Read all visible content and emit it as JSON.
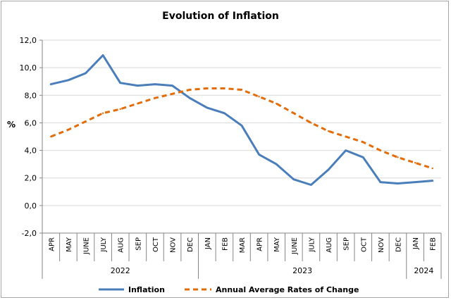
{
  "chart_data": {
    "type": "line",
    "title": "Evolution of Inflation",
    "ylabel": "%",
    "ylim": [
      -2,
      12
    ],
    "yticks": [
      -2,
      0,
      2,
      4,
      6,
      8,
      10,
      12
    ],
    "ytick_labels": [
      "-2,0",
      "0,0",
      "2,0",
      "4,0",
      "6,0",
      "8,0",
      "10,0",
      "12,0"
    ],
    "categories": [
      "APR",
      "MAY",
      "JUNE",
      "JULY",
      "AUG",
      "SEP",
      "OCT",
      "NOV",
      "DEC",
      "JAN",
      "FEB",
      "MAR",
      "APR",
      "MAY",
      "JUNE",
      "JULY",
      "AUG",
      "SEP",
      "OCT",
      "NOV",
      "DEC",
      "JAN",
      "FEB"
    ],
    "year_groups": [
      {
        "label": "2022",
        "start": 0,
        "end": 8
      },
      {
        "label": "2023",
        "start": 9,
        "end": 20
      },
      {
        "label": "2024",
        "start": 21,
        "end": 22
      }
    ],
    "series": [
      {
        "name": "Inflation",
        "color": "#4a7ebb",
        "style": "solid",
        "values": [
          8.8,
          9.1,
          9.6,
          10.9,
          8.9,
          8.7,
          8.8,
          8.7,
          7.8,
          7.1,
          6.7,
          5.8,
          3.7,
          3.0,
          1.9,
          1.5,
          2.6,
          4.0,
          3.5,
          1.7,
          1.6,
          1.7,
          1.8
        ]
      },
      {
        "name": "Annual Average Rates of Change",
        "color": "#e36c09",
        "style": "dashed",
        "values": [
          5.0,
          5.5,
          6.1,
          6.7,
          7.0,
          7.4,
          7.8,
          8.1,
          8.4,
          8.5,
          8.5,
          8.4,
          7.9,
          7.4,
          6.7,
          6.0,
          5.4,
          5.0,
          4.6,
          4.0,
          3.5,
          3.1,
          2.7
        ]
      }
    ],
    "grid": true,
    "legend_position": "bottom"
  }
}
